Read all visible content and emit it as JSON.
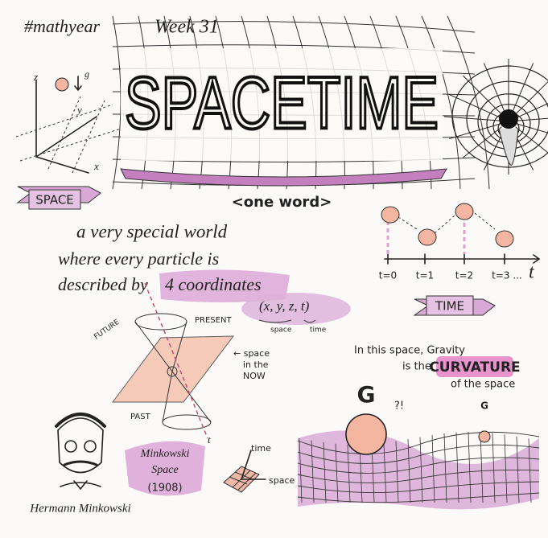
{
  "header": {
    "hashtag": "#mathyear",
    "week": "Week 31",
    "title": "SPACETIME",
    "subtitle": "<one word>"
  },
  "space_diagram": {
    "axes": [
      "z",
      "y",
      "x"
    ],
    "gravity_label": "g",
    "banner": "SPACE"
  },
  "definition": {
    "lines": [
      "a very special world",
      "where every particle is",
      "described by"
    ],
    "highlight": "4 coordinates",
    "coordinates": "(x, y, z, t)",
    "space_label": "space",
    "time_label": "time"
  },
  "timeline": {
    "ticks": [
      "t=0",
      "t=1",
      "t=2",
      "t=3 ..."
    ],
    "axis_label": "t",
    "banner": "TIME"
  },
  "light_cone": {
    "future": "FUTURE",
    "present": "PRESENT",
    "past": "PAST",
    "now_note": [
      "← space",
      "in the",
      "NOW"
    ],
    "axis_label": "t"
  },
  "minkowski": {
    "name": [
      "Minkowski",
      "Space"
    ],
    "year": "(1908)",
    "portrait_caption": "Hermann Minkowski"
  },
  "mini_grid": {
    "time": "time",
    "space": "space"
  },
  "gravity": {
    "lines": [
      "In this space, Gravity",
      "is the"
    ],
    "highlight": "CURVATURE",
    "last_line": "of the space",
    "big_g": "G",
    "small_g": "G",
    "exclaim": "?!"
  }
}
